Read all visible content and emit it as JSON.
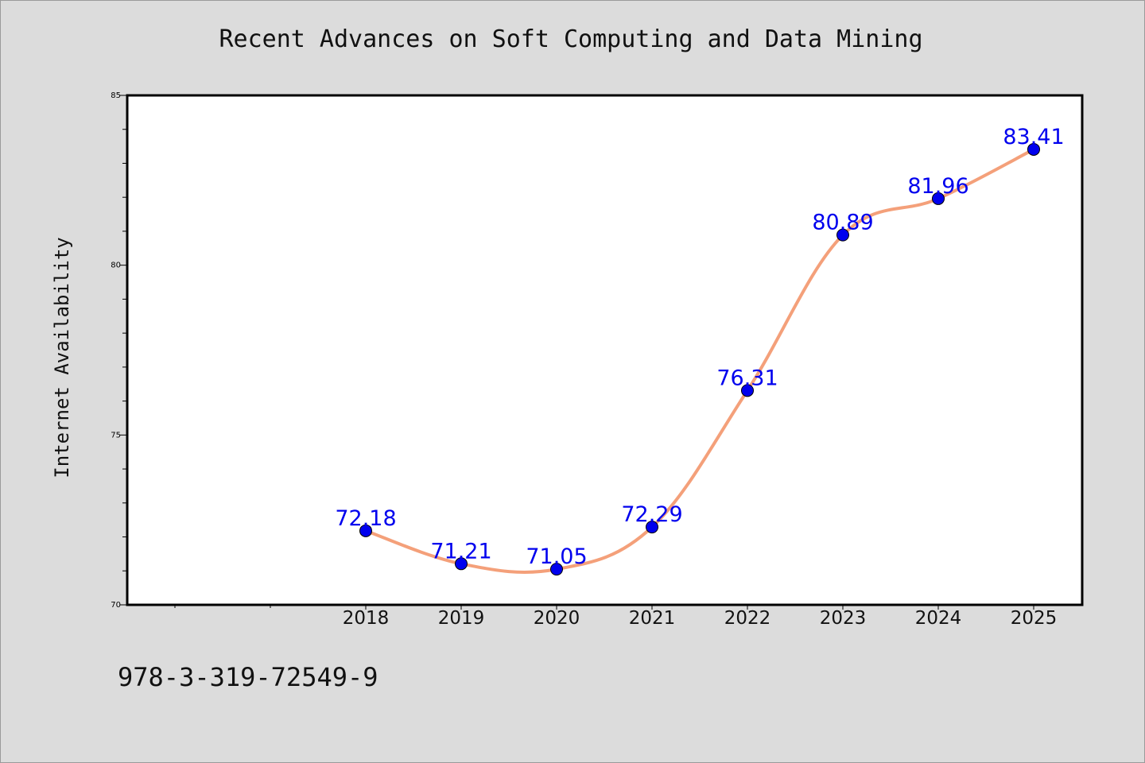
{
  "chart_data": {
    "type": "line",
    "title": "Recent Advances on Soft Computing and Data Mining",
    "xlabel": "",
    "ylabel": "Internet Availability",
    "x": [
      "2018",
      "2019",
      "2020",
      "2021",
      "2022",
      "2023",
      "2024",
      "2025"
    ],
    "series": [
      {
        "values": [
          72.18,
          71.21,
          71.05,
          72.29,
          76.31,
          80.89,
          81.96,
          83.41
        ],
        "line_color": "#f4a07a",
        "marker_color": "#0000ee",
        "label_color": "#0000ee"
      }
    ],
    "data_labels": [
      "72.18",
      "71.21",
      "71.05",
      "72.29",
      "76.31",
      "80.89",
      "81.96",
      "83.41"
    ],
    "ylim": [
      70,
      85
    ],
    "yticks": [
      "70",
      "75",
      "80",
      "85"
    ],
    "grid": false,
    "legend": "none"
  },
  "footer": {
    "isbn": "978-3-319-72549-9"
  }
}
